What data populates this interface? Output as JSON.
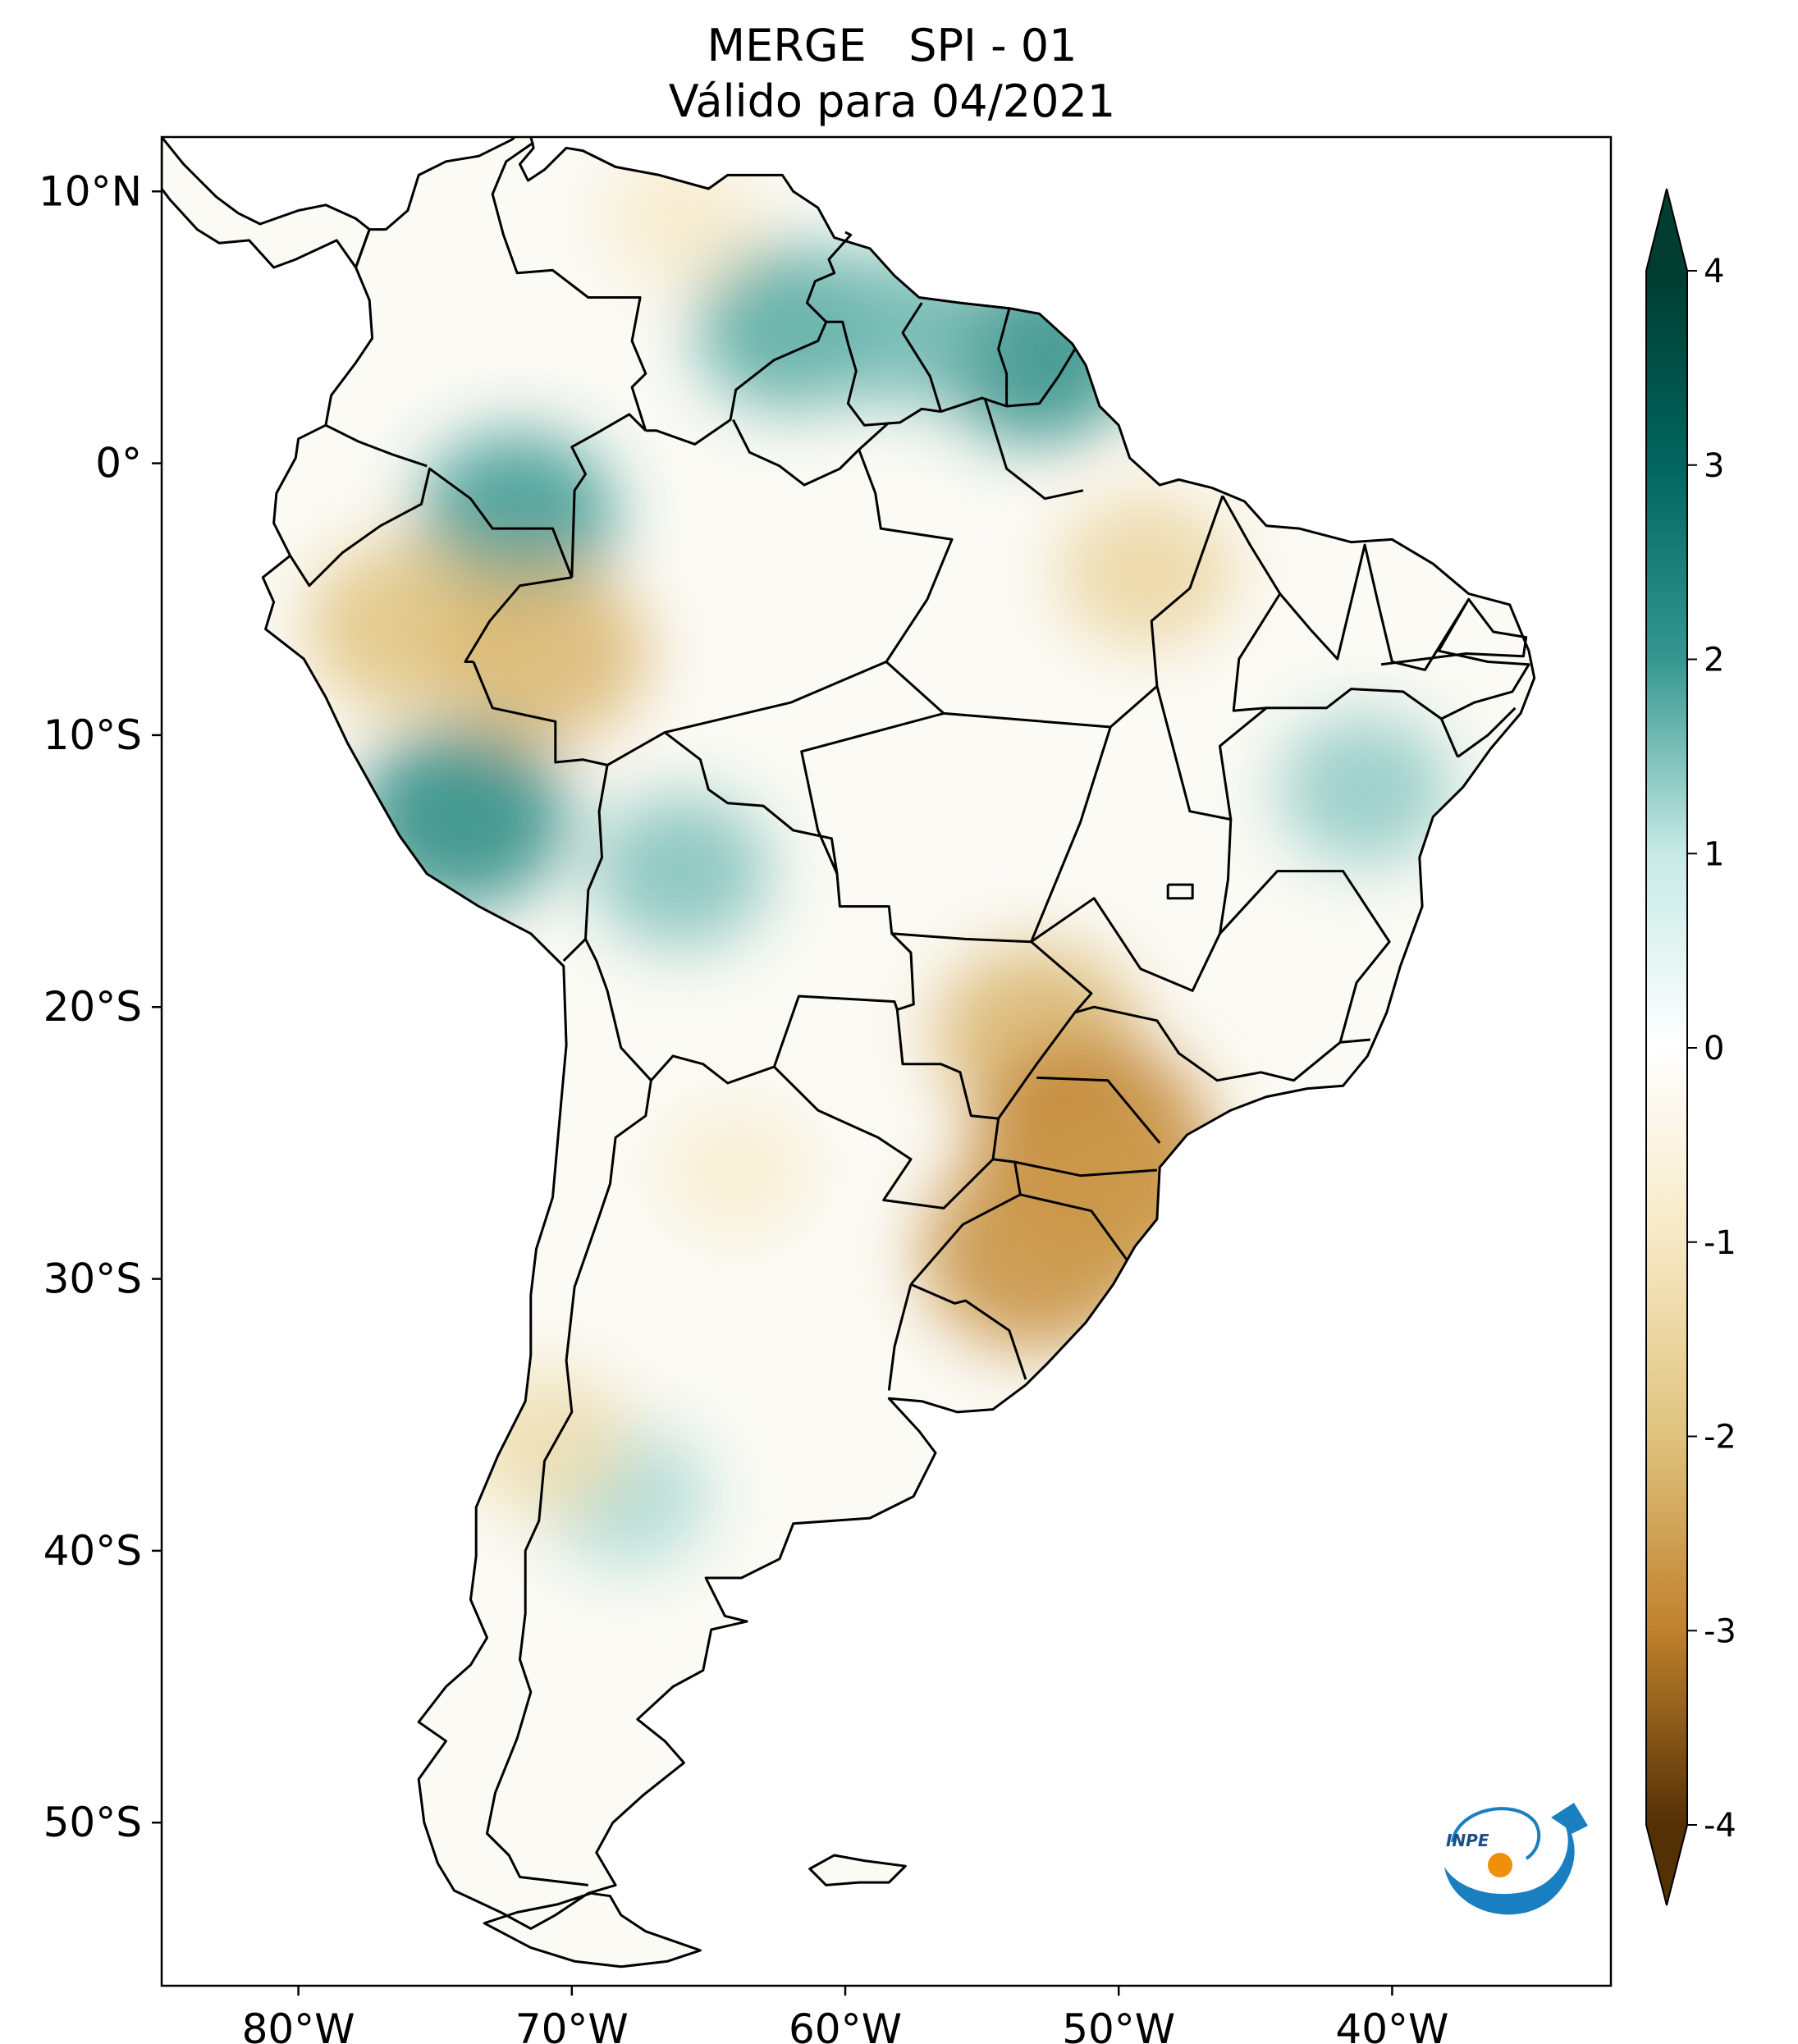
{
  "title": {
    "line1": "MERGE   SPI - 01",
    "line2": "Válido para 04/2021"
  },
  "map": {
    "projection": "PlateCarree",
    "lon_range": [
      -85,
      -32
    ],
    "lat_range": [
      -56,
      12
    ],
    "lat_ticks": [
      {
        "value": 10,
        "label": "10°N"
      },
      {
        "value": 0,
        "label": "0°"
      },
      {
        "value": -10,
        "label": "10°S"
      },
      {
        "value": -20,
        "label": "20°S"
      },
      {
        "value": -30,
        "label": "30°S"
      },
      {
        "value": -40,
        "label": "40°S"
      },
      {
        "value": -50,
        "label": "50°S"
      }
    ],
    "lon_ticks": [
      {
        "value": -80,
        "label": "80°W"
      },
      {
        "value": -70,
        "label": "70°W"
      },
      {
        "value": -60,
        "label": "60°W"
      },
      {
        "value": -50,
        "label": "50°W"
      },
      {
        "value": -40,
        "label": "40°W"
      }
    ],
    "data_regions": [
      {
        "name": "northern-amazon-wet",
        "lon": -62,
        "lat": 5,
        "spi": 1.8
      },
      {
        "name": "amapa-wet",
        "lon": -53,
        "lat": 4,
        "spi": 2.2
      },
      {
        "name": "guyana-wet",
        "lon": -58,
        "lat": 5,
        "spi": 1.6
      },
      {
        "name": "peru-south-wet",
        "lon": -74,
        "lat": -13,
        "spi": 2.3
      },
      {
        "name": "colombia-south-wet",
        "lon": -72,
        "lat": -2,
        "spi": 2.0
      },
      {
        "name": "bolivia-north-wet",
        "lon": -66,
        "lat": -15,
        "spi": 1.5
      },
      {
        "name": "bahia-wet",
        "lon": -41,
        "lat": -12,
        "spi": 1.4
      },
      {
        "name": "patagonia-wet",
        "lon": -68,
        "lat": -38,
        "spi": 1.2
      },
      {
        "name": "peru-north-dry",
        "lon": -76,
        "lat": -6,
        "spi": -2.0
      },
      {
        "name": "acre-dry",
        "lon": -71,
        "lat": -7,
        "spi": -2.2
      },
      {
        "name": "para-east-dry",
        "lon": -49,
        "lat": -4,
        "spi": -1.5
      },
      {
        "name": "mato-grosso-sul-dry",
        "lon": -53,
        "lat": -21,
        "spi": -2.2
      },
      {
        "name": "parana-dry",
        "lon": -51,
        "lat": -25,
        "spi": -3.0
      },
      {
        "name": "rio-grande-sul-dry",
        "lon": -53,
        "lat": -29,
        "spi": -2.8
      },
      {
        "name": "santa-catarina-dry",
        "lon": -50,
        "lat": -27,
        "spi": -2.6
      },
      {
        "name": "chile-central-dry",
        "lon": -71,
        "lat": -36,
        "spi": -1.3
      },
      {
        "name": "venezuela-north-dry",
        "lon": -66,
        "lat": 9,
        "spi": -0.9
      },
      {
        "name": "argentina-north-dry",
        "lon": -64,
        "lat": -26,
        "spi": -0.8
      }
    ],
    "logo_text": "INPE"
  },
  "colorbar": {
    "ticks": [
      4,
      3,
      2,
      1,
      0,
      -1,
      -2,
      -3,
      -4
    ],
    "tick_labels": [
      "4",
      "3",
      "2",
      "1",
      "0",
      "-1",
      "-2",
      "-3",
      "-4"
    ],
    "extend": "both",
    "colors": {
      "pos4": "#003c30",
      "pos3": "#01665e",
      "pos2": "#35978f",
      "pos1": "#c7eae5",
      "zero": "#ffffff",
      "neg1": "#f6e8c3",
      "neg2": "#dfc27d",
      "neg3": "#bf812d",
      "neg4": "#543005"
    }
  },
  "colors": {
    "border": "#000000",
    "logo_blue": "#1a7fc1",
    "logo_orange": "#f0900a"
  }
}
